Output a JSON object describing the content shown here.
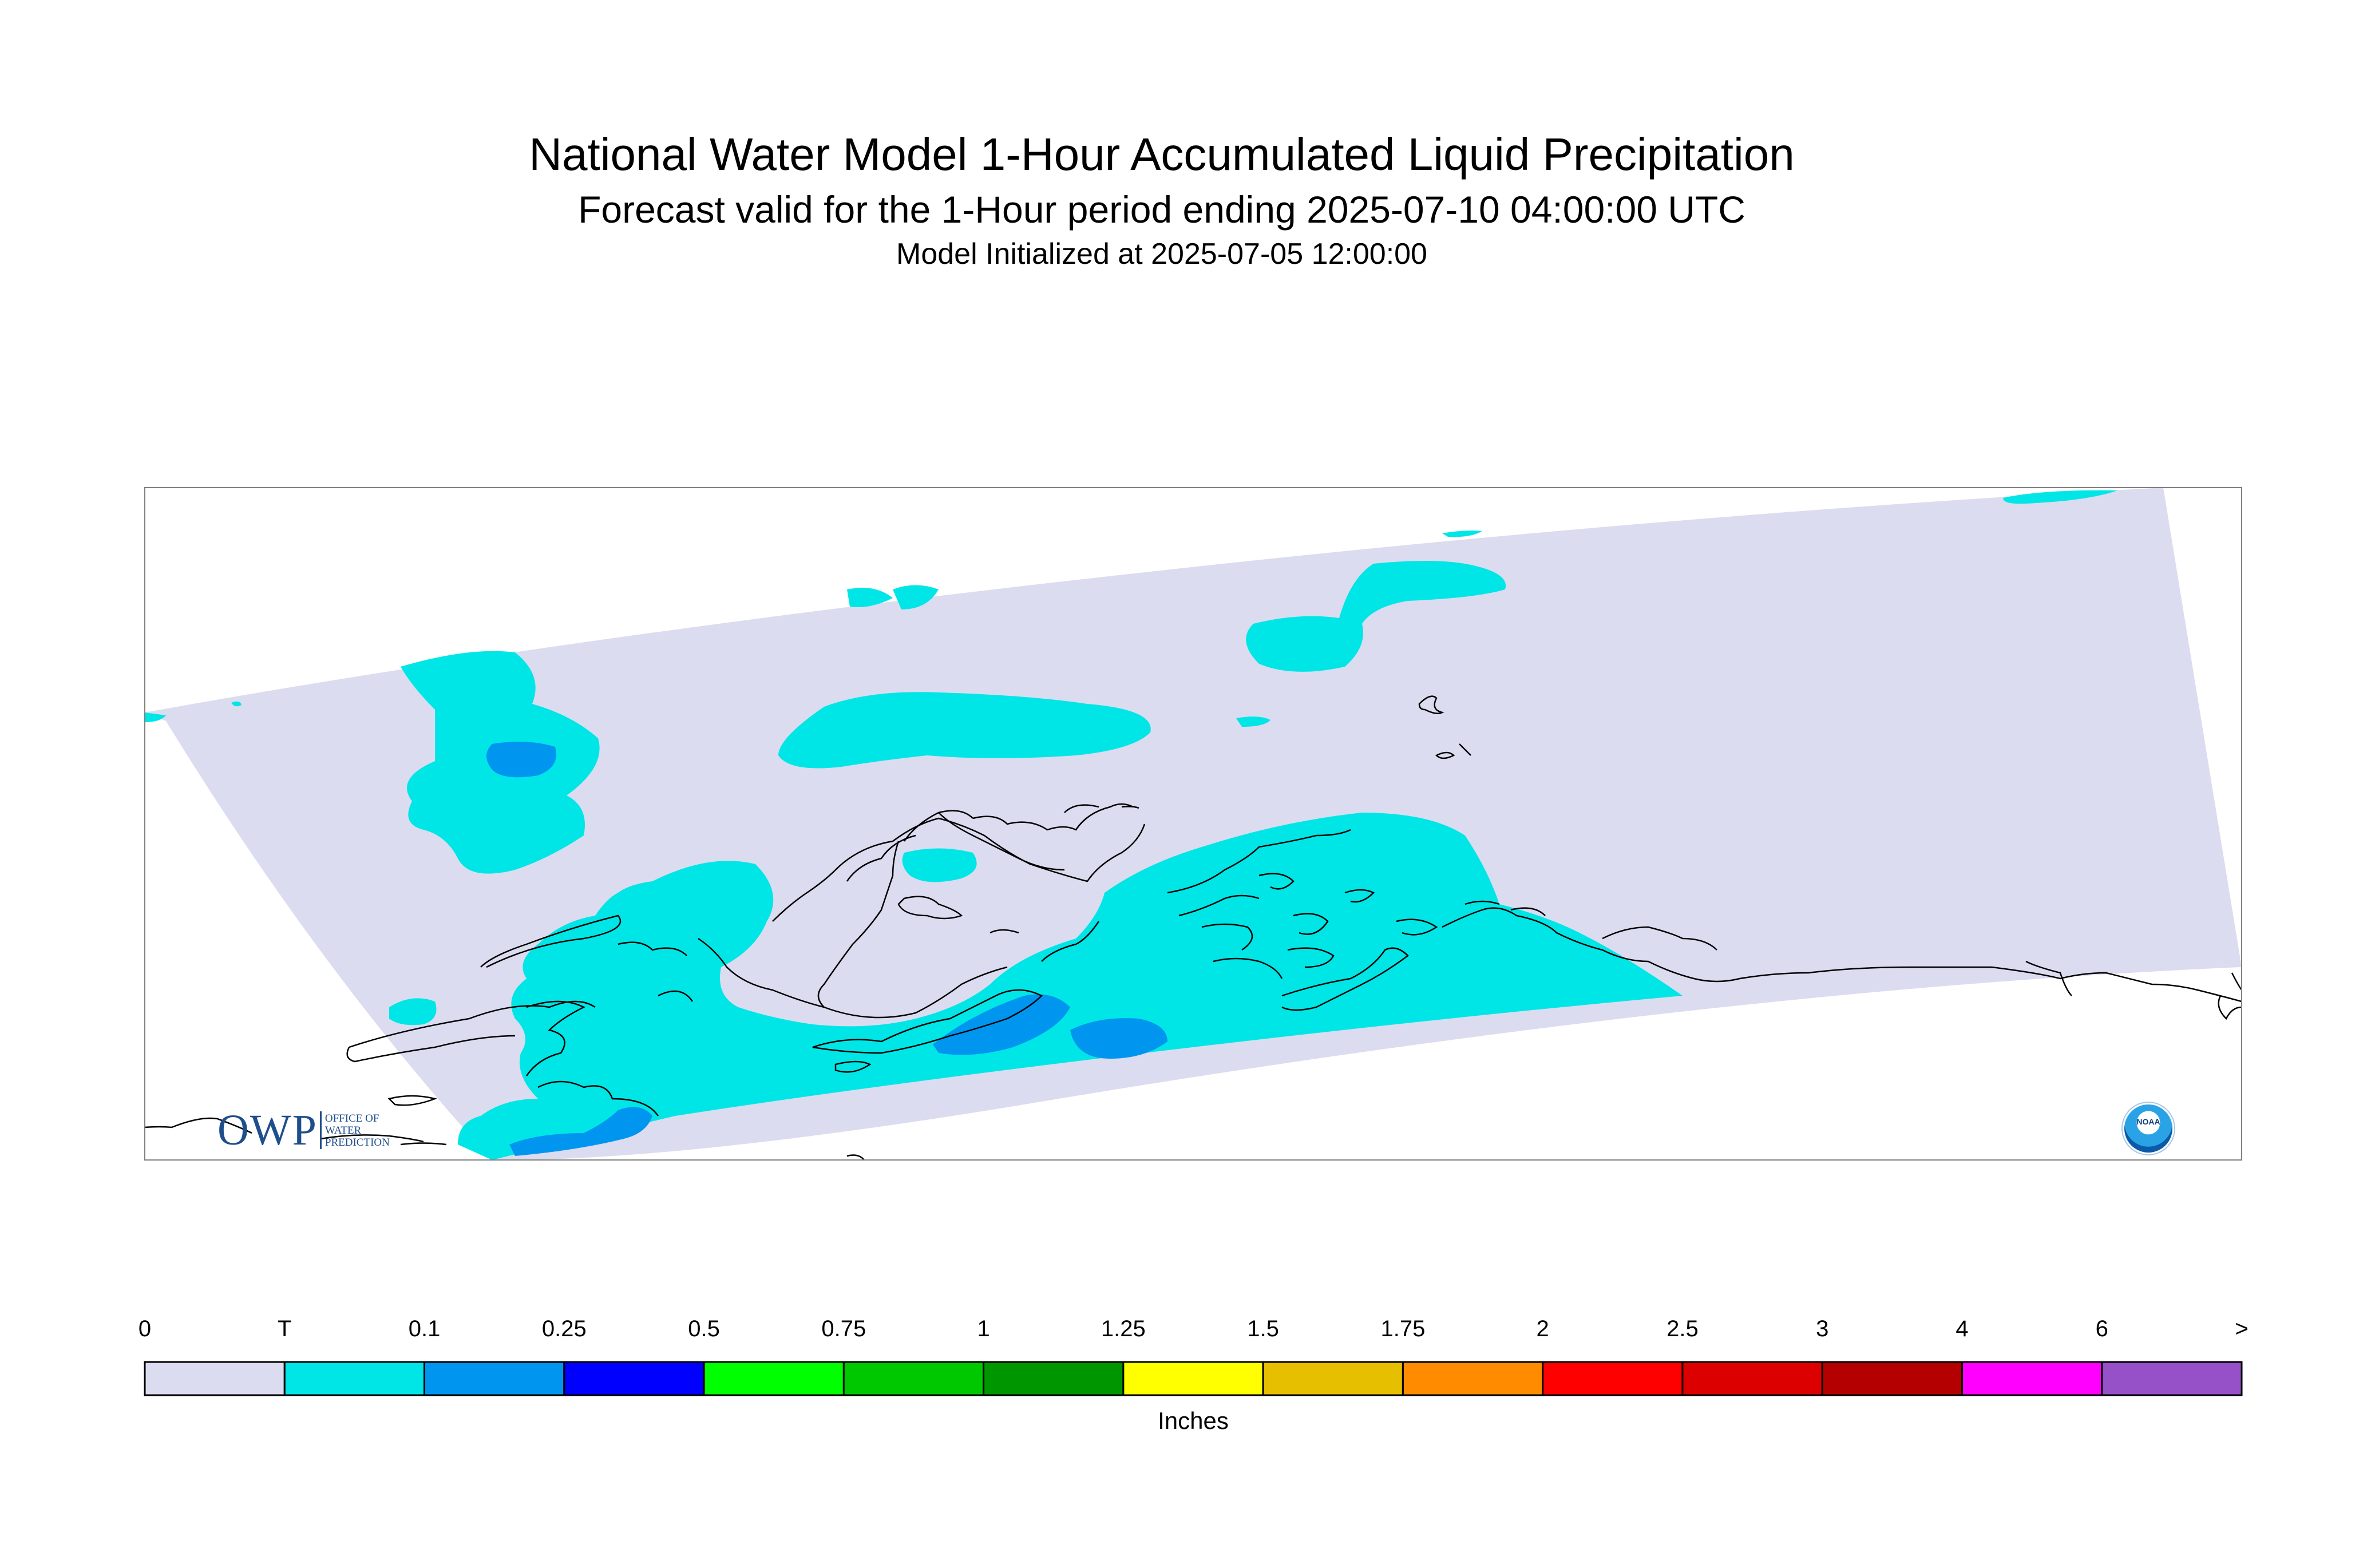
{
  "title": {
    "main": "National Water Model 1-Hour Accumulated Liquid Precipitation",
    "subtitle": "Forecast valid for the 1-Hour period ending 2025-07-10 04:00:00 UTC",
    "init": "Model Initialized at 2025-07-05 12:00:00"
  },
  "legend": {
    "units": "Inches",
    "labels": [
      "0",
      "T",
      "0.1",
      "0.25",
      "0.5",
      "0.75",
      "1",
      "1.25",
      "1.5",
      "1.75",
      "2",
      "2.5",
      "3",
      "4",
      "6",
      ">"
    ],
    "colors": [
      "#dcdcf0",
      "#00e6e6",
      "#0096f0",
      "#0000ff",
      "#00ff00",
      "#00c800",
      "#009600",
      "#ffff00",
      "#e6c000",
      "#ff8c00",
      "#ff0000",
      "#dc0000",
      "#b40000",
      "#ff00ff",
      "#9650c8"
    ]
  },
  "map": {
    "background_color": "#dcdcf0",
    "trace_color": "#00e6e6",
    "light_color": "#0096f0",
    "coast_color": "#000000"
  },
  "logos": {
    "owp": {
      "text": "OWP",
      "lines": [
        "OFFICE OF",
        "WATER",
        "PREDICTION"
      ]
    },
    "noaa": {
      "text": "NOAA"
    }
  }
}
